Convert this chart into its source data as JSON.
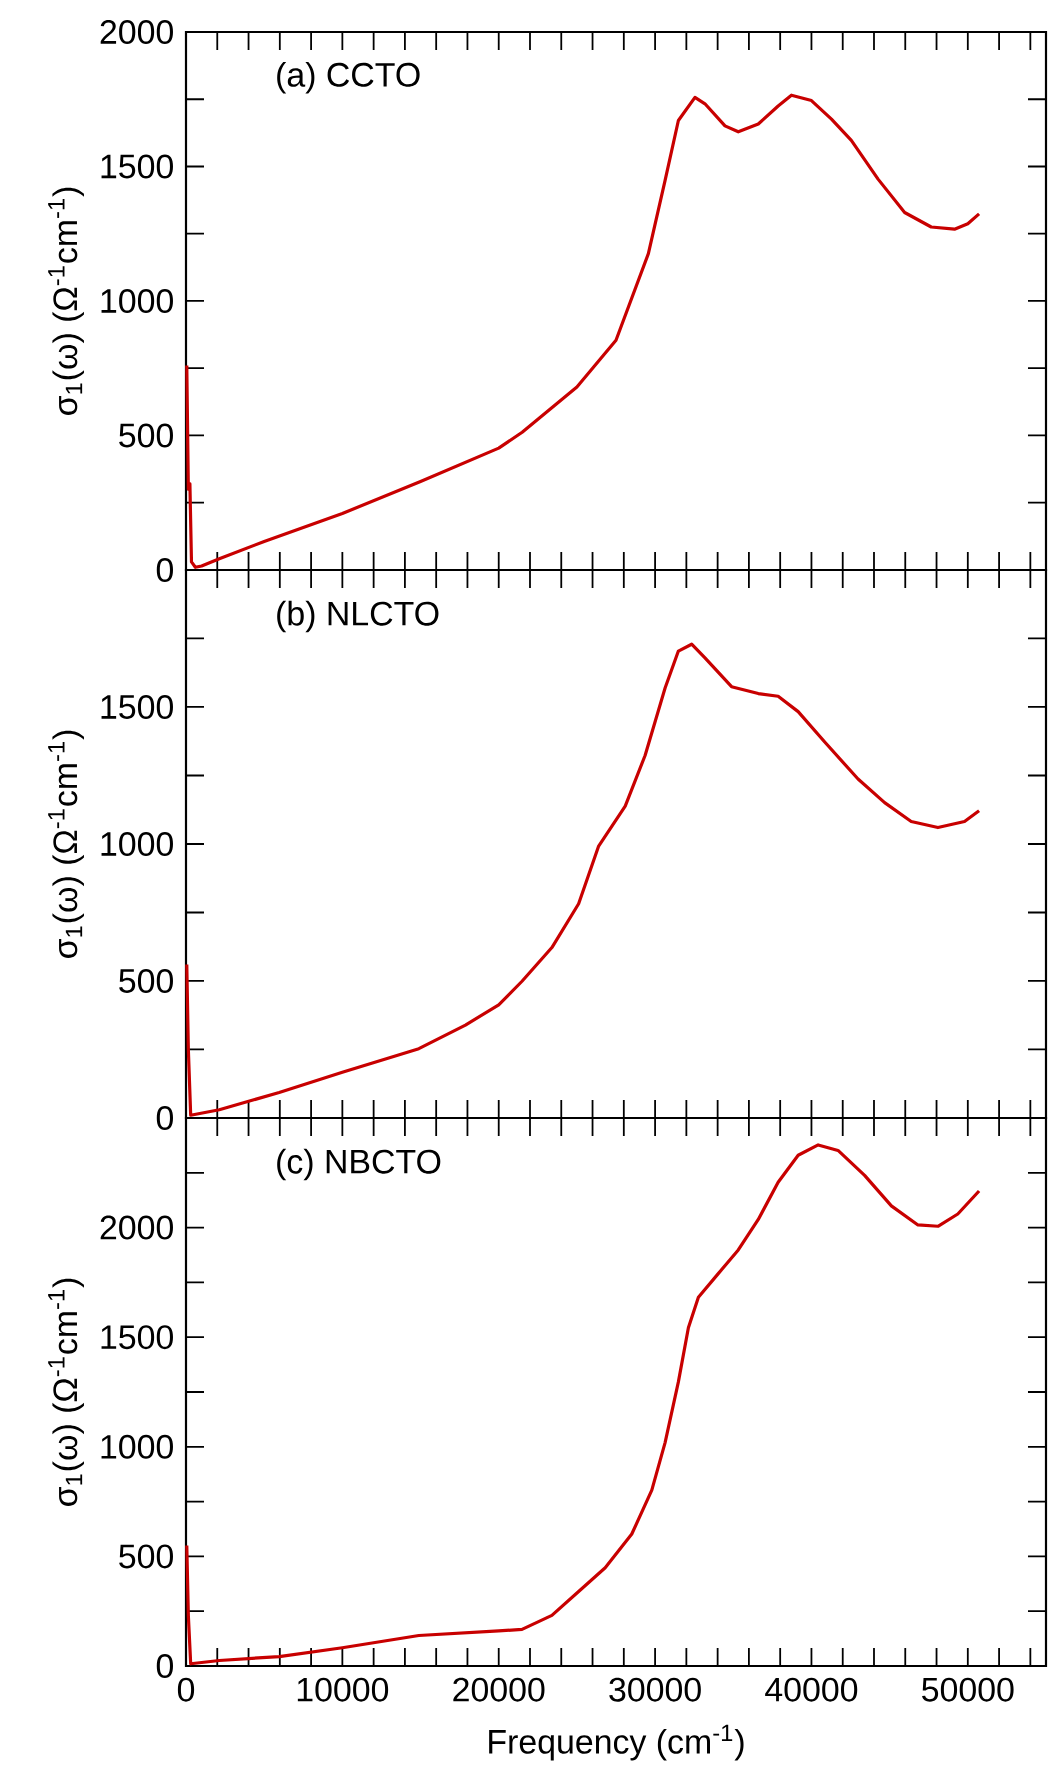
{
  "chart_data": [
    {
      "type": "line",
      "title": "(a) CCTO",
      "ylabel": "σ$_{1}$(ω) (Ω$^{-1}$cm$^{-1}$)",
      "tick_labels": "y",
      "marker": "none",
      "line_style": "solid",
      "xlim": [
        0,
        55000
      ],
      "ylim": [
        0,
        2000
      ],
      "xticks": [
        0,
        {
          "value": 2000,
          "label": null
        },
        {
          "value": 4000,
          "label": null
        },
        {
          "value": 6000,
          "label": null
        },
        {
          "value": 8000,
          "label": null
        },
        10000,
        {
          "value": 12000,
          "label": null
        },
        {
          "value": 14000,
          "label": null
        },
        {
          "value": 16000,
          "label": null
        },
        {
          "value": 18000,
          "label": null
        },
        20000,
        {
          "value": 22000,
          "label": null
        },
        {
          "value": 24000,
          "label": null
        },
        {
          "value": 26000,
          "label": null
        },
        {
          "value": 28000,
          "label": null
        },
        30000,
        {
          "value": 32000,
          "label": null
        },
        {
          "value": 34000,
          "label": null
        },
        {
          "value": 36000,
          "label": null
        },
        {
          "value": 38000,
          "label": null
        },
        40000,
        {
          "value": 42000,
          "label": null
        },
        {
          "value": 44000,
          "label": null
        },
        {
          "value": 46000,
          "label": null
        },
        {
          "value": 48000,
          "label": null
        },
        50000,
        {
          "value": 52000,
          "label": null
        },
        {
          "value": 54000,
          "label": null
        }
      ],
      "yticks": [
        0,
        {
          "value": 250,
          "label": null
        },
        500,
        {
          "value": 750,
          "label": null
        },
        1000,
        {
          "value": 1250,
          "label": null
        },
        1500,
        {
          "value": 1750,
          "label": null
        },
        2000
      ],
      "series": [
        {
          "color": "#c80000",
          "x": [
            50,
            150,
            250,
            350,
            600,
            1000,
            2130,
            5000,
            10000,
            15000,
            20000,
            21500,
            25000,
            27500,
            29570,
            30640,
            31490,
            32550,
            33190,
            34470,
            35320,
            36600,
            37870,
            38720,
            40000,
            41280,
            42550,
            44260,
            45960,
            47660,
            49150,
            50000,
            50720
          ],
          "values": [
            760,
            300,
            320,
            30,
            10,
            15,
            42,
            106,
            210,
            329,
            453,
            512,
            680,
            854,
            1176,
            1448,
            1671,
            1757,
            1733,
            1651,
            1629,
            1658,
            1725,
            1765,
            1745,
            1676,
            1597,
            1453,
            1329,
            1275,
            1267,
            1287,
            1324
          ]
        }
      ]
    },
    {
      "type": "line",
      "title": "(b) NLCTO",
      "ylabel": "σ$_{1}$(ω) (Ω$^{-1}$cm$^{-1}$)",
      "tick_labels": "y",
      "marker": "none",
      "line_style": "solid",
      "xlim": [
        0,
        55000
      ],
      "ylim": [
        0,
        2000
      ],
      "xticks": [
        0,
        {
          "value": 2000,
          "label": null
        },
        {
          "value": 4000,
          "label": null
        },
        {
          "value": 6000,
          "label": null
        },
        {
          "value": 8000,
          "label": null
        },
        10000,
        {
          "value": 12000,
          "label": null
        },
        {
          "value": 14000,
          "label": null
        },
        {
          "value": 16000,
          "label": null
        },
        {
          "value": 18000,
          "label": null
        },
        20000,
        {
          "value": 22000,
          "label": null
        },
        {
          "value": 24000,
          "label": null
        },
        {
          "value": 26000,
          "label": null
        },
        {
          "value": 28000,
          "label": null
        },
        30000,
        {
          "value": 32000,
          "label": null
        },
        {
          "value": 34000,
          "label": null
        },
        {
          "value": 36000,
          "label": null
        },
        {
          "value": 38000,
          "label": null
        },
        40000,
        {
          "value": 42000,
          "label": null
        },
        {
          "value": 44000,
          "label": null
        },
        {
          "value": 46000,
          "label": null
        },
        {
          "value": 48000,
          "label": null
        },
        50000,
        {
          "value": 52000,
          "label": null
        },
        {
          "value": 54000,
          "label": null
        }
      ],
      "yticks": [
        0,
        {
          "value": 250,
          "label": null
        },
        500,
        {
          "value": 750,
          "label": null
        },
        1000,
        {
          "value": 1250,
          "label": null
        },
        1500,
        {
          "value": 1750,
          "label": null
        }
      ],
      "series": [
        {
          "color": "#c80000",
          "x": [
            50,
            150,
            300,
            2130,
            5960,
            10000,
            14890,
            17870,
            20000,
            21490,
            23400,
            25110,
            26380,
            28090,
            29360,
            30640,
            31490,
            32340,
            33190,
            34890,
            36600,
            37870,
            39150,
            40850,
            42980,
            44680,
            46380,
            48090,
            49790,
            50720
          ],
          "values": [
            560,
            250,
            10,
            30,
            93,
            167,
            253,
            339,
            413,
            499,
            622,
            782,
            991,
            1138,
            1323,
            1569,
            1704,
            1729,
            1679,
            1574,
            1549,
            1539,
            1483,
            1372,
            1237,
            1151,
            1082,
            1060,
            1082,
            1121
          ]
        }
      ]
    },
    {
      "type": "line",
      "title": "(c) NBCTO",
      "xlabel": "Frequency (cm$^{-1}$)",
      "ylabel": "σ$_{1}$(ω) (Ω$^{-1}$cm$^{-1}$)",
      "marker": "none",
      "line_style": "solid",
      "xlim": [
        0,
        55000
      ],
      "ylim": [
        0,
        2500
      ],
      "xticks": [
        0,
        {
          "value": 2000,
          "label": null
        },
        {
          "value": 4000,
          "label": null
        },
        {
          "value": 6000,
          "label": null
        },
        {
          "value": 8000,
          "label": null
        },
        10000,
        {
          "value": 12000,
          "label": null
        },
        {
          "value": 14000,
          "label": null
        },
        {
          "value": 16000,
          "label": null
        },
        {
          "value": 18000,
          "label": null
        },
        20000,
        {
          "value": 22000,
          "label": null
        },
        {
          "value": 24000,
          "label": null
        },
        {
          "value": 26000,
          "label": null
        },
        {
          "value": 28000,
          "label": null
        },
        30000,
        {
          "value": 32000,
          "label": null
        },
        {
          "value": 34000,
          "label": null
        },
        {
          "value": 36000,
          "label": null
        },
        {
          "value": 38000,
          "label": null
        },
        40000,
        {
          "value": 42000,
          "label": null
        },
        {
          "value": 44000,
          "label": null
        },
        {
          "value": 46000,
          "label": null
        },
        {
          "value": 48000,
          "label": null
        },
        50000,
        {
          "value": 52000,
          "label": null
        },
        {
          "value": 54000,
          "label": null
        }
      ],
      "yticks": [
        0,
        {
          "value": 250,
          "label": null
        },
        500,
        {
          "value": 750,
          "label": null
        },
        1000,
        {
          "value": 1250,
          "label": null
        },
        1500,
        {
          "value": 1750,
          "label": null
        },
        2000,
        {
          "value": 2250,
          "label": null
        },
        {
          "value": 2500,
          "label": null
        }
      ],
      "series": [
        {
          "color": "#c80000",
          "x": [
            50,
            150,
            300,
            2130,
            5960,
            10000,
            14890,
            20000,
            21490,
            23400,
            25110,
            26810,
            28510,
            29790,
            30640,
            31490,
            32130,
            32770,
            34040,
            35320,
            36600,
            37870,
            39150,
            40430,
            41700,
            43400,
            45110,
            46810,
            48090,
            49360,
            50720
          ],
          "values": [
            550,
            230,
            10,
            25,
            43,
            83,
            139,
            160,
            167,
            231,
            340,
            448,
            602,
            802,
            1019,
            1296,
            1543,
            1682,
            1790,
            1898,
            2037,
            2207,
            2330,
            2377,
            2352,
            2238,
            2099,
            2012,
            2006,
            2062,
            2167
          ]
        }
      ]
    }
  ]
}
